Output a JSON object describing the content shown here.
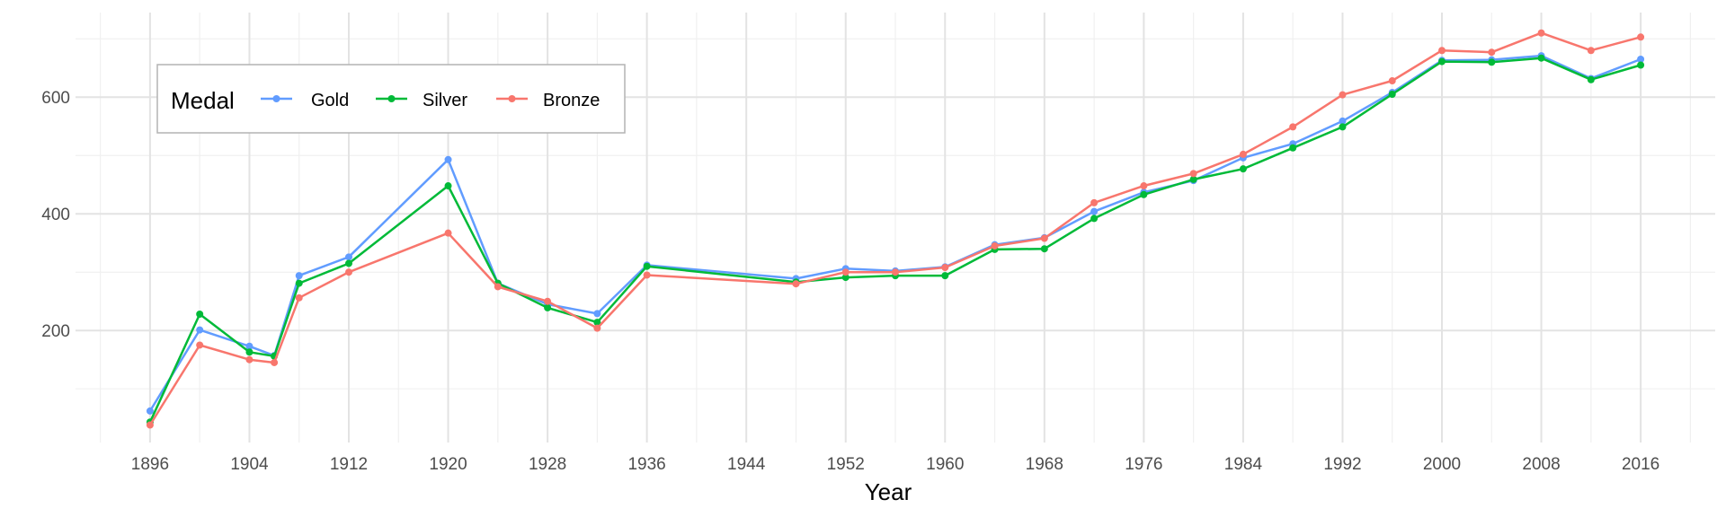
{
  "chart_data": {
    "type": "line",
    "title": "",
    "xlabel": "Year",
    "ylabel": "",
    "xlim": [
      1890,
      2022
    ],
    "ylim": [
      8,
      745
    ],
    "x_ticks": [
      1896,
      1904,
      1912,
      1920,
      1928,
      1936,
      1944,
      1952,
      1960,
      1968,
      1976,
      1984,
      1992,
      2000,
      2008,
      2016
    ],
    "x_minor_ticks": [
      1892,
      1900,
      1908,
      1916,
      1924,
      1932,
      1940,
      1948,
      1956,
      1964,
      1972,
      1980,
      1988,
      1996,
      2004,
      2012,
      2020
    ],
    "y_ticks": [
      200,
      400,
      600
    ],
    "y_minor_ticks": [
      100,
      300,
      500,
      700
    ],
    "grid": true,
    "legend": {
      "title": "Medal",
      "position": "top-left"
    },
    "series": [
      {
        "name": "Gold",
        "color": "#619CFF",
        "x": [
          1896,
          1900,
          1904,
          1906,
          1908,
          1912,
          1920,
          1924,
          1928,
          1932,
          1936,
          1948,
          1952,
          1956,
          1960,
          1964,
          1968,
          1972,
          1976,
          1980,
          1984,
          1988,
          1992,
          1996,
          2000,
          2004,
          2008,
          2012,
          2016
        ],
        "values": [
          62,
          201,
          173,
          157,
          294,
          326,
          493,
          281,
          245,
          229,
          312,
          289,
          306,
          302,
          309,
          347,
          359,
          404,
          437,
          457,
          496,
          520,
          559,
          608,
          663,
          664,
          671,
          632,
          665
        ]
      },
      {
        "name": "Silver",
        "color": "#00BA38",
        "x": [
          1896,
          1900,
          1904,
          1906,
          1908,
          1912,
          1920,
          1924,
          1928,
          1932,
          1936,
          1948,
          1952,
          1956,
          1960,
          1964,
          1968,
          1972,
          1976,
          1980,
          1984,
          1988,
          1992,
          1996,
          2000,
          2004,
          2008,
          2012,
          2016
        ],
        "values": [
          43,
          228,
          163,
          156,
          281,
          315,
          448,
          281,
          239,
          214,
          310,
          283,
          291,
          294,
          294,
          339,
          340,
          392,
          433,
          459,
          477,
          513,
          549,
          605,
          661,
          660,
          667,
          630,
          655
        ]
      },
      {
        "name": "Bronze",
        "color": "#F8766D",
        "x": [
          1896,
          1900,
          1904,
          1906,
          1908,
          1912,
          1920,
          1924,
          1928,
          1932,
          1936,
          1948,
          1952,
          1956,
          1960,
          1964,
          1968,
          1972,
          1976,
          1980,
          1984,
          1988,
          1992,
          1996,
          2000,
          2004,
          2008,
          2012,
          2016
        ],
        "values": [
          38,
          175,
          150,
          145,
          256,
          300,
          367,
          275,
          250,
          204,
          295,
          280,
          300,
          300,
          308,
          345,
          358,
          419,
          448,
          469,
          502,
          549,
          604,
          628,
          680,
          677,
          710,
          680,
          703
        ]
      }
    ]
  }
}
